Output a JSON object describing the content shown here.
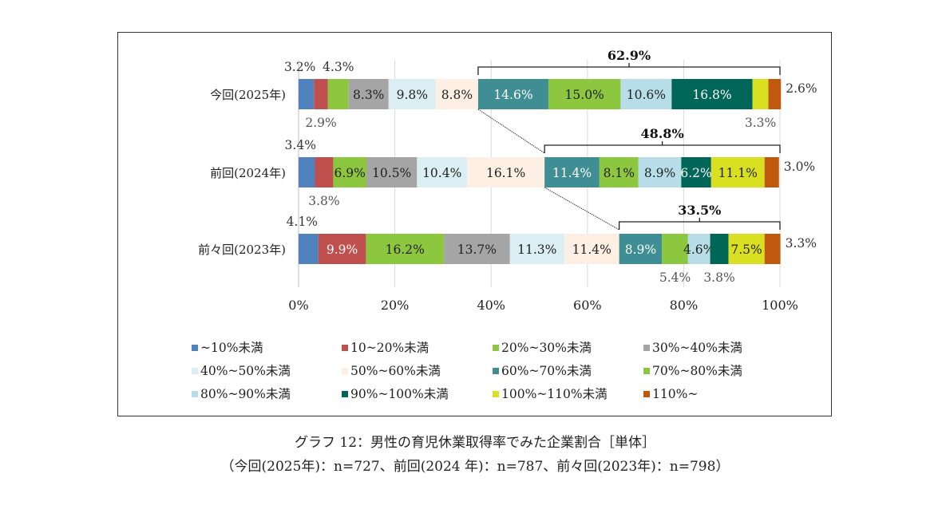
{
  "chart_data": {
    "type": "bar",
    "orientation": "horizontal-stacked-100",
    "categories": [
      "今回(2025年)",
      "前回(2024年)",
      "前々回(2023年)"
    ],
    "series": [
      {
        "name": "~10%未満",
        "color": "#4f81bd",
        "values": [
          3.2,
          3.4,
          4.1
        ]
      },
      {
        "name": "10~20%未満",
        "color": "#c0504d",
        "values": [
          2.9,
          3.8,
          9.9
        ]
      },
      {
        "name": "20%~30%未満",
        "color": "#8dc63f",
        "values": [
          4.3,
          6.9,
          16.2
        ]
      },
      {
        "name": "30%~40%未満",
        "color": "#a5a5a5",
        "values": [
          8.3,
          10.5,
          13.7
        ]
      },
      {
        "name": "40%~50%未満",
        "color": "#dbeef3",
        "values": [
          9.8,
          10.4,
          11.3
        ]
      },
      {
        "name": "50%~60%未満",
        "color": "#fdefe3",
        "values": [
          8.8,
          16.1,
          11.4
        ]
      },
      {
        "name": "60%~70%未満",
        "color": "#3e8e93",
        "values": [
          14.6,
          11.4,
          8.9
        ]
      },
      {
        "name": "70%~80%未満",
        "color": "#8dc63f",
        "values": [
          15.0,
          8.1,
          5.4
        ]
      },
      {
        "name": "80%~90%未満",
        "color": "#b7dde8",
        "values": [
          10.6,
          8.9,
          4.6
        ]
      },
      {
        "name": "90%~100%未満",
        "color": "#006657",
        "values": [
          16.8,
          6.2,
          3.8
        ]
      },
      {
        "name": "100%~110%未満",
        "color": "#d9df21",
        "values": [
          3.3,
          11.1,
          7.5
        ]
      },
      {
        "name": "110%~",
        "color": "#c0590e",
        "values": [
          2.6,
          3.0,
          3.3
        ]
      }
    ],
    "brackets": [
      {
        "category": "今回(2025年)",
        "from_series": "60%~70%未満",
        "label": "62.9%"
      },
      {
        "category": "前回(2024年)",
        "from_series": "60%~70%未満",
        "label": "48.8%"
      },
      {
        "category": "前々回(2023年)",
        "from_series": "60%~70%未満",
        "label": "33.5%"
      }
    ],
    "xlim": [
      0,
      100
    ],
    "xticks": [
      "0%",
      "20%",
      "40%",
      "60%",
      "80%",
      "100%"
    ],
    "grid": true,
    "legend_position": "bottom",
    "title": "グラフ 12：男性の育児休業取得率でみた企業割合［単体］",
    "subtitle": "（今回(2025年)：n=727、前回(2024 年)：n=787、前々回(2023年)：n=798）"
  }
}
